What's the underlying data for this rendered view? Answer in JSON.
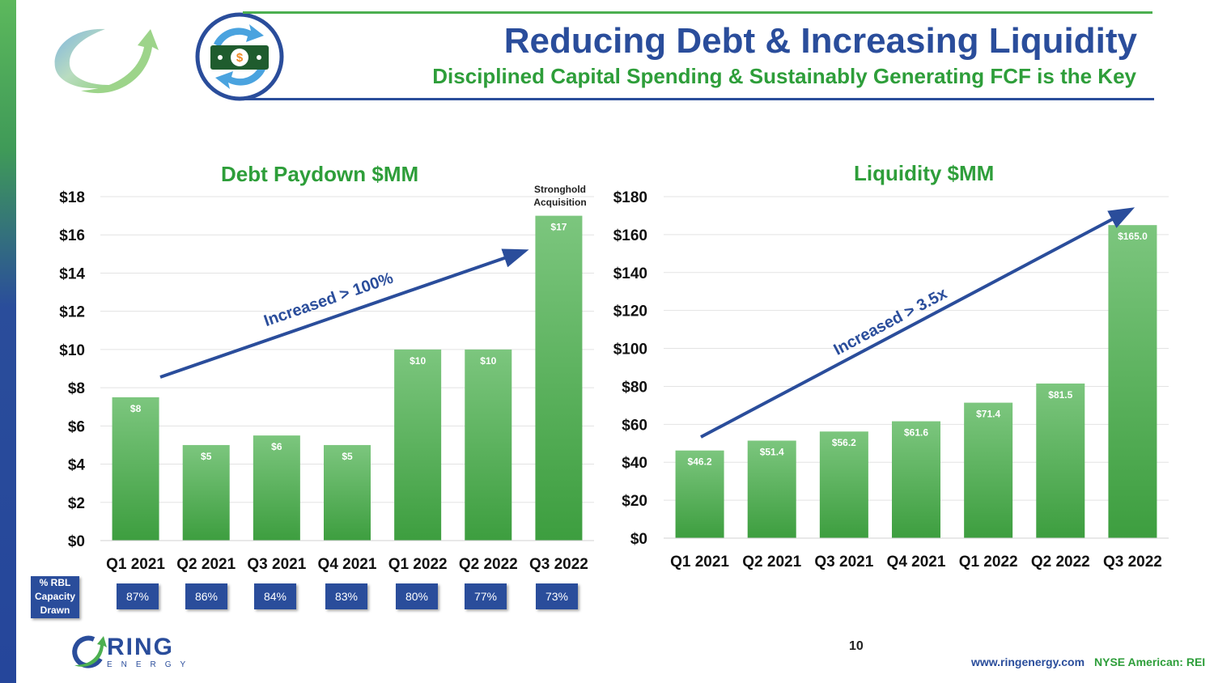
{
  "header": {
    "title": "Reducing Debt & Increasing Liquidity",
    "subtitle": "Disciplined Capital Spending & Sustainably Generating FCF is the Key"
  },
  "chart_data": [
    {
      "type": "bar",
      "title": "Debt Paydown $MM",
      "categories": [
        "Q1 2021",
        "Q2 2021",
        "Q3 2021",
        "Q4 2021",
        "Q1 2022",
        "Q2 2022",
        "Q3 2022"
      ],
      "values": [
        7.5,
        5,
        5.5,
        5,
        10,
        10,
        17
      ],
      "data_labels": [
        "$8",
        "$5",
        "$6",
        "$5",
        "$10",
        "$10",
        "$17"
      ],
      "ylim": [
        0,
        18
      ],
      "yticks": [
        "$0",
        "$2",
        "$4",
        "$6",
        "$8",
        "$10",
        "$12",
        "$14",
        "$16",
        "$18"
      ],
      "trend_label": "Increased > 100%",
      "annotation": [
        "Stronghold",
        "Acquisition"
      ],
      "grid": true
    },
    {
      "type": "bar",
      "title": "Liquidity $MM",
      "categories": [
        "Q1 2021",
        "Q2 2021",
        "Q3 2021",
        "Q4 2021",
        "Q1 2022",
        "Q2 2022",
        "Q3 2022"
      ],
      "values": [
        46.2,
        51.4,
        56.2,
        61.6,
        71.4,
        81.5,
        165.0
      ],
      "data_labels": [
        "$46.2",
        "$51.4",
        "$56.2",
        "$61.6",
        "$71.4",
        "$81.5",
        "$165.0"
      ],
      "ylim": [
        0,
        180
      ],
      "yticks": [
        "$0",
        "$20",
        "$40",
        "$60",
        "$80",
        "$100",
        "$120",
        "$140",
        "$160",
        "$180"
      ],
      "trend_label": "Increased > 3.5x",
      "grid": true
    }
  ],
  "rbl": {
    "label_lines": [
      "% RBL",
      "Capacity",
      "Drawn"
    ],
    "values": [
      "87%",
      "86%",
      "84%",
      "83%",
      "80%",
      "77%",
      "73%"
    ]
  },
  "footer": {
    "page_number": "10",
    "url": "www.ringenergy.com",
    "ticker": "NYSE American: REI",
    "logo_word": "RING",
    "logo_sub": "ENERGY"
  },
  "colors": {
    "brand_blue": "#2a4d9b",
    "brand_green": "#2e9e3a",
    "bar_top": "#7cc67e",
    "bar_bottom": "#3d9e3f",
    "arrow": "#2a4d9b"
  }
}
